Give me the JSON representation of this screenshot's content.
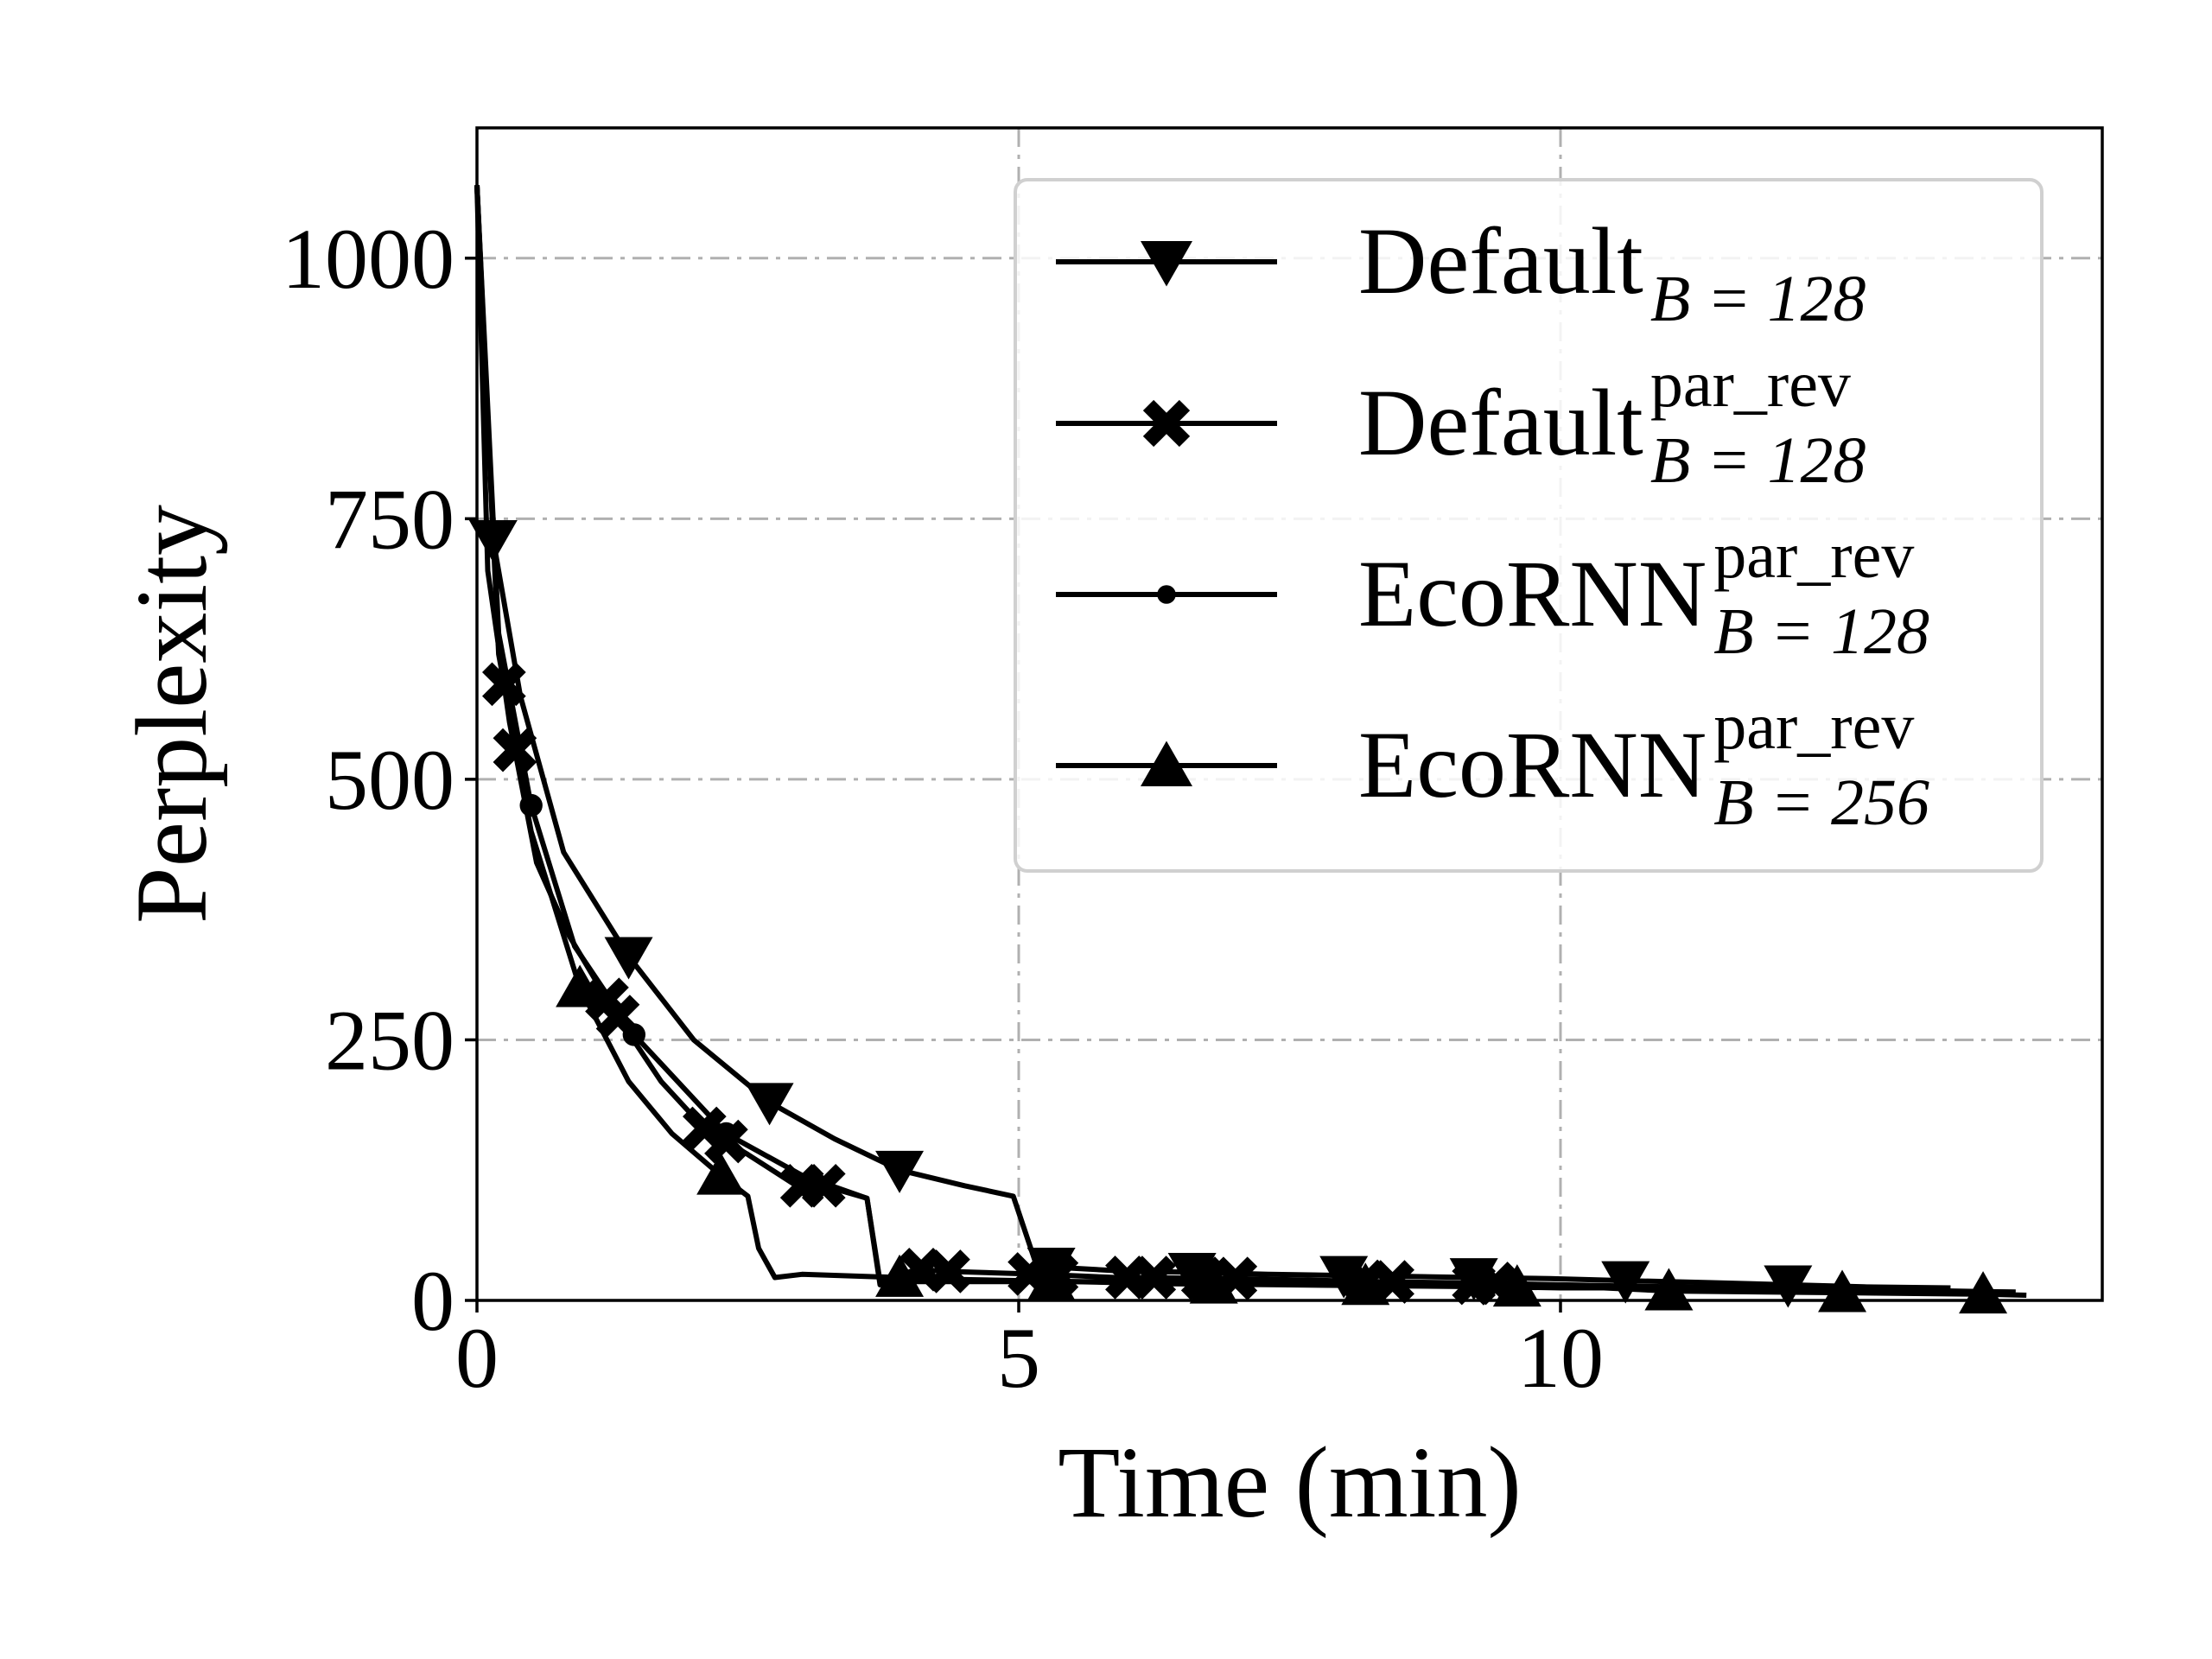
{
  "chart_data": {
    "type": "line",
    "xlabel": "Time (min)",
    "ylabel": "Perplexity",
    "xlim": [
      0,
      15
    ],
    "ylim": [
      0,
      1125
    ],
    "xticks": [
      0,
      5,
      10
    ],
    "yticks": [
      0,
      250,
      500,
      750,
      1000
    ],
    "grid": true,
    "legend_position": "top-right",
    "series": [
      {
        "name": "Default",
        "name_sub": "B = 128",
        "name_sup": "",
        "marker": "triangle-down",
        "x": [
          0.0,
          0.15,
          0.4,
          0.8,
          1.4,
          2.0,
          2.7,
          3.3,
          3.9,
          4.5,
          4.95,
          5.15,
          5.3,
          6.0,
          6.6,
          7.3,
          8.0,
          8.6,
          9.2,
          9.9,
          10.6,
          11.4,
          12.1,
          12.8,
          13.6
        ],
        "y": [
          1070,
          730,
          580,
          430,
          330,
          250,
          190,
          155,
          125,
          110,
          100,
          38,
          32,
          28,
          27,
          25,
          24,
          23,
          22,
          21,
          19,
          17,
          15,
          13,
          12
        ],
        "marker_x": [
          0.15,
          1.4,
          2.7,
          3.9,
          5.3,
          6.6,
          8.0,
          9.2,
          10.6,
          12.1
        ]
      },
      {
        "name": "Default",
        "name_sub": "B = 128",
        "name_sup": "par_rev",
        "marker": "x",
        "x": [
          0.0,
          0.1,
          0.3,
          0.55,
          0.85,
          1.25,
          1.7,
          2.1,
          2.5,
          2.95,
          3.2,
          3.6,
          3.72,
          4.05,
          4.3,
          5.2,
          5.9,
          6.2,
          6.75,
          7.0,
          8.3,
          9.0,
          10.0,
          11.0,
          12.5,
          14.2
        ],
        "y": [
          1070,
          700,
          555,
          420,
          350,
          280,
          210,
          165,
          140,
          110,
          110,
          98,
          15,
          30,
          28,
          25,
          22,
          22,
          21,
          21,
          18,
          17,
          15,
          13,
          11,
          8
        ],
        "marker_x": [
          0.25,
          0.35,
          1.2,
          1.3,
          2.1,
          2.3,
          3.0,
          3.2,
          4.1,
          4.35,
          5.1,
          5.35,
          6.0,
          6.25,
          6.7,
          7.0,
          8.2,
          8.45,
          9.2,
          9.4
        ]
      },
      {
        "name": "EcoRNN",
        "name_sub": "B = 128",
        "name_sup": "par_rev",
        "marker": "circle",
        "x": [
          0.0,
          0.2,
          0.5,
          0.9,
          1.45,
          2.3,
          3.0,
          3.6,
          3.72,
          5.0,
          6.2,
          7.0,
          8.3,
          9.5,
          10.6,
          12.0,
          14.2
        ],
        "y": [
          1070,
          640,
          475,
          340,
          255,
          160,
          120,
          98,
          18,
          18,
          18,
          17,
          15,
          14,
          12,
          10,
          8
        ],
        "marker_x": [
          0.5,
          1.45,
          2.3
        ]
      },
      {
        "name": "EcoRNN",
        "name_sub": "B = 256",
        "name_sup": "par_rev",
        "marker": "triangle-up",
        "x": [
          0.0,
          0.2,
          0.5,
          0.95,
          1.4,
          1.8,
          2.25,
          2.5,
          2.6,
          2.75,
          3.0,
          3.9,
          4.5,
          5.5,
          6.4,
          7.4,
          8.4,
          9.4,
          10.0,
          10.4,
          11.0,
          12.0,
          13.0,
          13.9,
          14.3
        ],
        "y": [
          1070,
          620,
          450,
          300,
          210,
          160,
          120,
          100,
          50,
          22,
          25,
          22,
          20,
          18,
          16,
          15,
          14,
          13,
          12,
          12,
          9,
          8,
          7,
          6,
          5
        ],
        "marker_x": [
          0.95,
          2.25,
          3.9,
          5.3,
          6.8,
          8.2,
          9.6,
          11.0,
          12.6,
          13.9
        ]
      }
    ]
  }
}
